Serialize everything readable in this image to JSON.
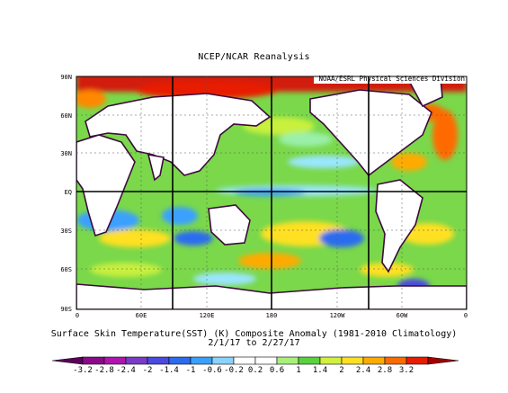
{
  "title": "NCEP/NCAR Reanalysis",
  "credit": "NOAA/ESRL Physical Sciences Division",
  "caption": {
    "line1": "Surface Skin Temperature(SST) (K) Composite Anomaly (1981-2010 Climatology)",
    "line2": "2/1/17  to 2/27/17"
  },
  "lat_labels": [
    "90N",
    "60N",
    "30N",
    "EQ",
    "30S",
    "60S",
    "90S"
  ],
  "lon_labels": [
    "0",
    "60E",
    "120E",
    "180",
    "120W",
    "60W",
    "0"
  ],
  "colorbar": {
    "labels": [
      "-3.2",
      "-2.8",
      "-2.4",
      "-2",
      "-1.4",
      "-1",
      "-0.6",
      "-0.2",
      "0.2",
      "0.6",
      "1",
      "1.4",
      "2",
      "2.4",
      "2.8",
      "3.2"
    ],
    "colors": [
      "#5c005c",
      "#8a0a8a",
      "#b014b0",
      "#7a3cc8",
      "#4a4ae0",
      "#2a6cf0",
      "#3aa0ff",
      "#8ad2ff",
      "#ffffff",
      "#ffffff",
      "#a8f07a",
      "#5ad23c",
      "#d2f03c",
      "#ffe020",
      "#ffaa00",
      "#ff6a00",
      "#e81c00",
      "#a00000"
    ]
  },
  "colors": {
    "land": "#ffffff",
    "coast": "#3c0a3c",
    "frame": "#000000",
    "ocean_bg": "#7ad84a",
    "ice_north": "#d21e0a"
  }
}
